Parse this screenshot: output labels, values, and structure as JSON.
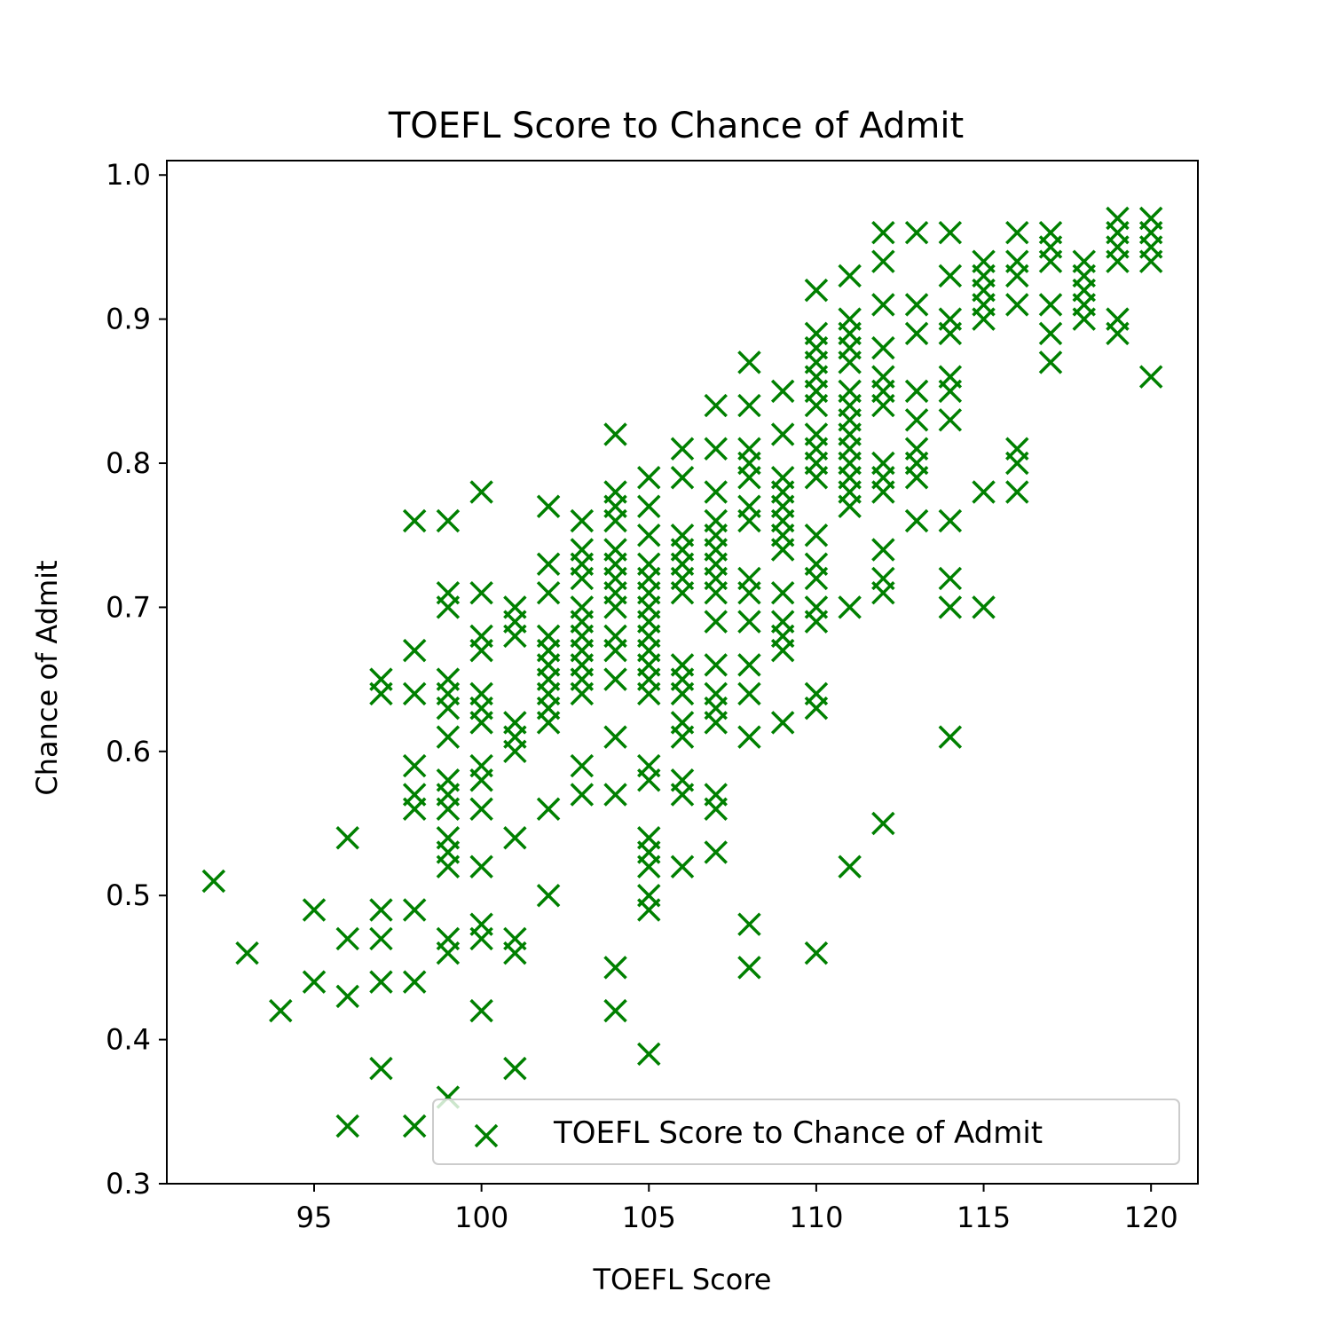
{
  "chart_data": {
    "type": "scatter",
    "title": "TOEFL Score to Chance of Admit",
    "xlabel": "TOEFL Score",
    "ylabel": "Chance of Admit",
    "xlim": [
      90.6,
      121.4
    ],
    "ylim": [
      0.3,
      1.01
    ],
    "xticks": [
      95,
      100,
      105,
      110,
      115,
      120
    ],
    "yticks": [
      0.3,
      0.4,
      0.5,
      0.6,
      0.7,
      0.8,
      0.9,
      1.0
    ],
    "xtick_labels": [
      "95",
      "100",
      "105",
      "110",
      "115",
      "120"
    ],
    "ytick_labels": [
      "0.3",
      "0.4",
      "0.5",
      "0.6",
      "0.7",
      "0.8",
      "0.9",
      "1.0"
    ],
    "marker": "x",
    "color": "#008000",
    "grid": false,
    "legend": {
      "position": "lower-right",
      "label": "TOEFL Score to Chance of Admit"
    },
    "series": [
      {
        "name": "TOEFL Score to Chance of Admit",
        "points": [
          [
            92,
            0.51
          ],
          [
            93,
            0.46
          ],
          [
            94,
            0.42
          ],
          [
            95,
            0.49
          ],
          [
            95,
            0.44
          ],
          [
            96,
            0.54
          ],
          [
            96,
            0.47
          ],
          [
            96,
            0.43
          ],
          [
            96,
            0.34
          ],
          [
            97,
            0.65
          ],
          [
            97,
            0.64
          ],
          [
            97,
            0.49
          ],
          [
            97,
            0.47
          ],
          [
            97,
            0.44
          ],
          [
            97,
            0.38
          ],
          [
            98,
            0.76
          ],
          [
            98,
            0.67
          ],
          [
            98,
            0.64
          ],
          [
            98,
            0.59
          ],
          [
            98,
            0.57
          ],
          [
            98,
            0.56
          ],
          [
            98,
            0.49
          ],
          [
            98,
            0.44
          ],
          [
            98,
            0.34
          ],
          [
            99,
            0.76
          ],
          [
            99,
            0.71
          ],
          [
            99,
            0.7
          ],
          [
            99,
            0.65
          ],
          [
            99,
            0.64
          ],
          [
            99,
            0.63
          ],
          [
            99,
            0.61
          ],
          [
            99,
            0.58
          ],
          [
            99,
            0.57
          ],
          [
            99,
            0.56
          ],
          [
            99,
            0.54
          ],
          [
            99,
            0.53
          ],
          [
            99,
            0.52
          ],
          [
            99,
            0.47
          ],
          [
            99,
            0.46
          ],
          [
            99,
            0.36
          ],
          [
            100,
            0.78
          ],
          [
            100,
            0.71
          ],
          [
            100,
            0.68
          ],
          [
            100,
            0.67
          ],
          [
            100,
            0.64
          ],
          [
            100,
            0.63
          ],
          [
            100,
            0.62
          ],
          [
            100,
            0.59
          ],
          [
            100,
            0.58
          ],
          [
            100,
            0.56
          ],
          [
            100,
            0.52
          ],
          [
            100,
            0.48
          ],
          [
            100,
            0.47
          ],
          [
            100,
            0.42
          ],
          [
            101,
            0.7
          ],
          [
            101,
            0.69
          ],
          [
            101,
            0.68
          ],
          [
            101,
            0.62
          ],
          [
            101,
            0.61
          ],
          [
            101,
            0.6
          ],
          [
            101,
            0.54
          ],
          [
            101,
            0.47
          ],
          [
            101,
            0.46
          ],
          [
            101,
            0.38
          ],
          [
            102,
            0.77
          ],
          [
            102,
            0.73
          ],
          [
            102,
            0.71
          ],
          [
            102,
            0.68
          ],
          [
            102,
            0.67
          ],
          [
            102,
            0.66
          ],
          [
            102,
            0.65
          ],
          [
            102,
            0.64
          ],
          [
            102,
            0.63
          ],
          [
            102,
            0.62
          ],
          [
            102,
            0.56
          ],
          [
            102,
            0.5
          ],
          [
            103,
            0.76
          ],
          [
            103,
            0.74
          ],
          [
            103,
            0.73
          ],
          [
            103,
            0.72
          ],
          [
            103,
            0.7
          ],
          [
            103,
            0.69
          ],
          [
            103,
            0.68
          ],
          [
            103,
            0.67
          ],
          [
            103,
            0.66
          ],
          [
            103,
            0.65
          ],
          [
            103,
            0.64
          ],
          [
            103,
            0.59
          ],
          [
            103,
            0.57
          ],
          [
            104,
            0.82
          ],
          [
            104,
            0.78
          ],
          [
            104,
            0.77
          ],
          [
            104,
            0.76
          ],
          [
            104,
            0.74
          ],
          [
            104,
            0.73
          ],
          [
            104,
            0.72
          ],
          [
            104,
            0.71
          ],
          [
            104,
            0.7
          ],
          [
            104,
            0.68
          ],
          [
            104,
            0.67
          ],
          [
            104,
            0.65
          ],
          [
            104,
            0.61
          ],
          [
            104,
            0.57
          ],
          [
            104,
            0.45
          ],
          [
            104,
            0.42
          ],
          [
            105,
            0.79
          ],
          [
            105,
            0.77
          ],
          [
            105,
            0.75
          ],
          [
            105,
            0.73
          ],
          [
            105,
            0.72
          ],
          [
            105,
            0.71
          ],
          [
            105,
            0.7
          ],
          [
            105,
            0.69
          ],
          [
            105,
            0.68
          ],
          [
            105,
            0.67
          ],
          [
            105,
            0.66
          ],
          [
            105,
            0.65
          ],
          [
            105,
            0.64
          ],
          [
            105,
            0.59
          ],
          [
            105,
            0.58
          ],
          [
            105,
            0.54
          ],
          [
            105,
            0.53
          ],
          [
            105,
            0.52
          ],
          [
            105,
            0.5
          ],
          [
            105,
            0.49
          ],
          [
            105,
            0.39
          ],
          [
            106,
            0.81
          ],
          [
            106,
            0.79
          ],
          [
            106,
            0.75
          ],
          [
            106,
            0.74
          ],
          [
            106,
            0.73
          ],
          [
            106,
            0.72
          ],
          [
            106,
            0.71
          ],
          [
            106,
            0.66
          ],
          [
            106,
            0.65
          ],
          [
            106,
            0.64
          ],
          [
            106,
            0.62
          ],
          [
            106,
            0.61
          ],
          [
            106,
            0.58
          ],
          [
            106,
            0.57
          ],
          [
            106,
            0.52
          ],
          [
            107,
            0.84
          ],
          [
            107,
            0.81
          ],
          [
            107,
            0.78
          ],
          [
            107,
            0.76
          ],
          [
            107,
            0.75
          ],
          [
            107,
            0.74
          ],
          [
            107,
            0.73
          ],
          [
            107,
            0.72
          ],
          [
            107,
            0.71
          ],
          [
            107,
            0.69
          ],
          [
            107,
            0.66
          ],
          [
            107,
            0.64
          ],
          [
            107,
            0.63
          ],
          [
            107,
            0.62
          ],
          [
            107,
            0.57
          ],
          [
            107,
            0.56
          ],
          [
            107,
            0.53
          ],
          [
            108,
            0.87
          ],
          [
            108,
            0.84
          ],
          [
            108,
            0.81
          ],
          [
            108,
            0.8
          ],
          [
            108,
            0.79
          ],
          [
            108,
            0.77
          ],
          [
            108,
            0.76
          ],
          [
            108,
            0.72
          ],
          [
            108,
            0.71
          ],
          [
            108,
            0.69
          ],
          [
            108,
            0.66
          ],
          [
            108,
            0.64
          ],
          [
            108,
            0.61
          ],
          [
            108,
            0.48
          ],
          [
            108,
            0.45
          ],
          [
            109,
            0.85
          ],
          [
            109,
            0.82
          ],
          [
            109,
            0.79
          ],
          [
            109,
            0.78
          ],
          [
            109,
            0.77
          ],
          [
            109,
            0.76
          ],
          [
            109,
            0.75
          ],
          [
            109,
            0.74
          ],
          [
            109,
            0.71
          ],
          [
            109,
            0.69
          ],
          [
            109,
            0.68
          ],
          [
            109,
            0.67
          ],
          [
            109,
            0.62
          ],
          [
            110,
            0.92
          ],
          [
            110,
            0.89
          ],
          [
            110,
            0.88
          ],
          [
            110,
            0.87
          ],
          [
            110,
            0.86
          ],
          [
            110,
            0.85
          ],
          [
            110,
            0.84
          ],
          [
            110,
            0.82
          ],
          [
            110,
            0.81
          ],
          [
            110,
            0.8
          ],
          [
            110,
            0.79
          ],
          [
            110,
            0.75
          ],
          [
            110,
            0.73
          ],
          [
            110,
            0.72
          ],
          [
            110,
            0.7
          ],
          [
            110,
            0.69
          ],
          [
            110,
            0.64
          ],
          [
            110,
            0.63
          ],
          [
            110,
            0.46
          ],
          [
            111,
            0.93
          ],
          [
            111,
            0.9
          ],
          [
            111,
            0.89
          ],
          [
            111,
            0.88
          ],
          [
            111,
            0.87
          ],
          [
            111,
            0.85
          ],
          [
            111,
            0.84
          ],
          [
            111,
            0.83
          ],
          [
            111,
            0.82
          ],
          [
            111,
            0.81
          ],
          [
            111,
            0.8
          ],
          [
            111,
            0.79
          ],
          [
            111,
            0.78
          ],
          [
            111,
            0.77
          ],
          [
            111,
            0.7
          ],
          [
            111,
            0.52
          ],
          [
            112,
            0.96
          ],
          [
            112,
            0.94
          ],
          [
            112,
            0.91
          ],
          [
            112,
            0.88
          ],
          [
            112,
            0.86
          ],
          [
            112,
            0.85
          ],
          [
            112,
            0.84
          ],
          [
            112,
            0.8
          ],
          [
            112,
            0.79
          ],
          [
            112,
            0.78
          ],
          [
            112,
            0.74
          ],
          [
            112,
            0.72
          ],
          [
            112,
            0.71
          ],
          [
            112,
            0.55
          ],
          [
            113,
            0.96
          ],
          [
            113,
            0.91
          ],
          [
            113,
            0.89
          ],
          [
            113,
            0.85
          ],
          [
            113,
            0.83
          ],
          [
            113,
            0.81
          ],
          [
            113,
            0.8
          ],
          [
            113,
            0.79
          ],
          [
            113,
            0.76
          ],
          [
            114,
            0.96
          ],
          [
            114,
            0.93
          ],
          [
            114,
            0.9
          ],
          [
            114,
            0.89
          ],
          [
            114,
            0.86
          ],
          [
            114,
            0.85
          ],
          [
            114,
            0.83
          ],
          [
            114,
            0.76
          ],
          [
            114,
            0.72
          ],
          [
            114,
            0.7
          ],
          [
            114,
            0.61
          ],
          [
            115,
            0.94
          ],
          [
            115,
            0.93
          ],
          [
            115,
            0.92
          ],
          [
            115,
            0.91
          ],
          [
            115,
            0.9
          ],
          [
            115,
            0.78
          ],
          [
            115,
            0.7
          ],
          [
            116,
            0.96
          ],
          [
            116,
            0.94
          ],
          [
            116,
            0.93
          ],
          [
            116,
            0.91
          ],
          [
            116,
            0.81
          ],
          [
            116,
            0.8
          ],
          [
            116,
            0.78
          ],
          [
            117,
            0.96
          ],
          [
            117,
            0.95
          ],
          [
            117,
            0.94
          ],
          [
            117,
            0.91
          ],
          [
            117,
            0.89
          ],
          [
            117,
            0.87
          ],
          [
            118,
            0.94
          ],
          [
            118,
            0.93
          ],
          [
            118,
            0.92
          ],
          [
            118,
            0.91
          ],
          [
            118,
            0.9
          ],
          [
            119,
            0.97
          ],
          [
            119,
            0.96
          ],
          [
            119,
            0.95
          ],
          [
            119,
            0.94
          ],
          [
            119,
            0.9
          ],
          [
            119,
            0.89
          ],
          [
            120,
            0.97
          ],
          [
            120,
            0.96
          ],
          [
            120,
            0.95
          ],
          [
            120,
            0.94
          ],
          [
            120,
            0.86
          ]
        ]
      }
    ]
  }
}
